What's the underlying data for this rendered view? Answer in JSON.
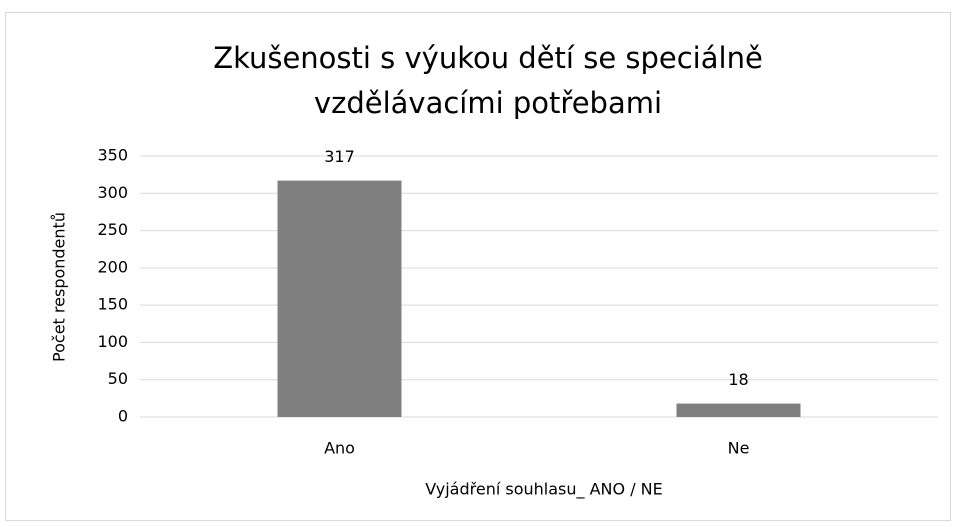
{
  "chart_data": {
    "type": "bar",
    "title": [
      "Zkušenosti s výukou dětí se speciálně",
      "vzdělávacími potřebami"
    ],
    "categories": [
      "Ano",
      "Ne"
    ],
    "values": [
      317,
      18
    ],
    "color": "#7f7f7f",
    "xlabel": "Vyjádření souhlasu_ ANO / NE",
    "ylabel": "Počet respondentů",
    "ylim": [
      0,
      350
    ],
    "yticks": [
      0,
      50,
      100,
      150,
      200,
      250,
      300,
      350
    ],
    "grid": true
  }
}
